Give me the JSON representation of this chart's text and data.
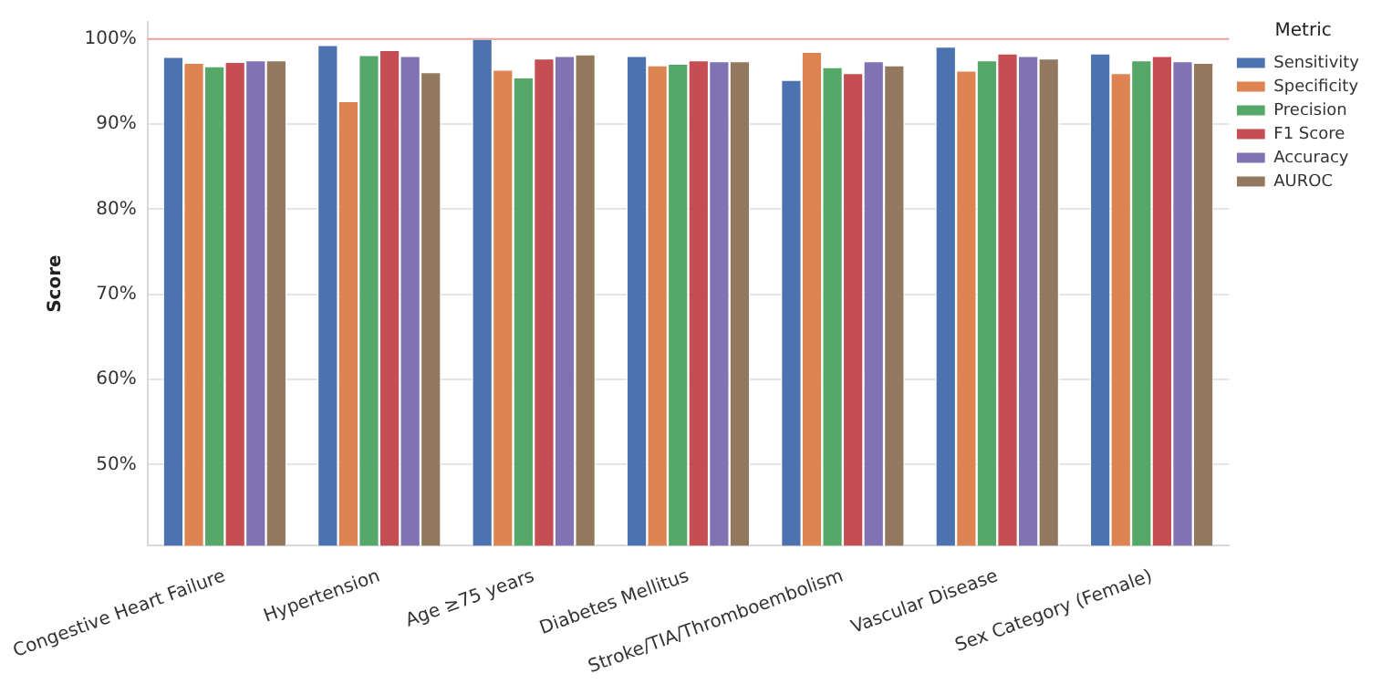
{
  "chart_data": {
    "type": "bar",
    "ylabel": "Score",
    "legend_title": "Metric",
    "legend": "top right",
    "grid": "y",
    "categories": [
      "Congestive Heart Failure",
      "Hypertension",
      "Age ≥75 years",
      "Diabetes Mellitus",
      "Stroke/TIA/Thromboembolism",
      "Vascular Disease",
      "Sex Category (Female)"
    ],
    "series": [
      {
        "name": "Sensitivity",
        "color": "#4c72b0",
        "values": [
          97.9,
          99.3,
          100,
          98.0,
          95.2,
          99.1,
          98.3
        ]
      },
      {
        "name": "Specificity",
        "color": "#dd8452",
        "values": [
          97.2,
          92.7,
          96.4,
          96.9,
          98.5,
          96.3,
          96.0
        ]
      },
      {
        "name": "Precision",
        "color": "#55a868",
        "values": [
          96.8,
          98.1,
          95.5,
          97.1,
          96.7,
          97.5,
          97.5
        ]
      },
      {
        "name": "F1 Score",
        "color": "#c44e52",
        "values": [
          97.3,
          98.7,
          97.7,
          97.5,
          96.0,
          98.3,
          98.0
        ]
      },
      {
        "name": "Accuracy",
        "color": "#8172b3",
        "values": [
          97.5,
          98.0,
          98.0,
          97.4,
          97.4,
          98.0,
          97.4
        ]
      },
      {
        "name": "AUROC",
        "color": "#937860",
        "values": [
          97.5,
          96.1,
          98.2,
          97.4,
          96.9,
          97.7,
          97.2
        ]
      }
    ],
    "ylim": [
      40.5,
      102
    ],
    "yticks": [
      {
        "value": 50,
        "label": "50%"
      },
      {
        "value": 60,
        "label": "60%"
      },
      {
        "value": 70,
        "label": "70%"
      },
      {
        "value": 80,
        "label": "80%"
      },
      {
        "value": 90,
        "label": "90%"
      },
      {
        "value": 100,
        "label": "100%"
      }
    ],
    "ref_lines": [
      {
        "axis": "y",
        "value": 100,
        "label": null,
        "color": "#e8a4a4"
      }
    ]
  }
}
